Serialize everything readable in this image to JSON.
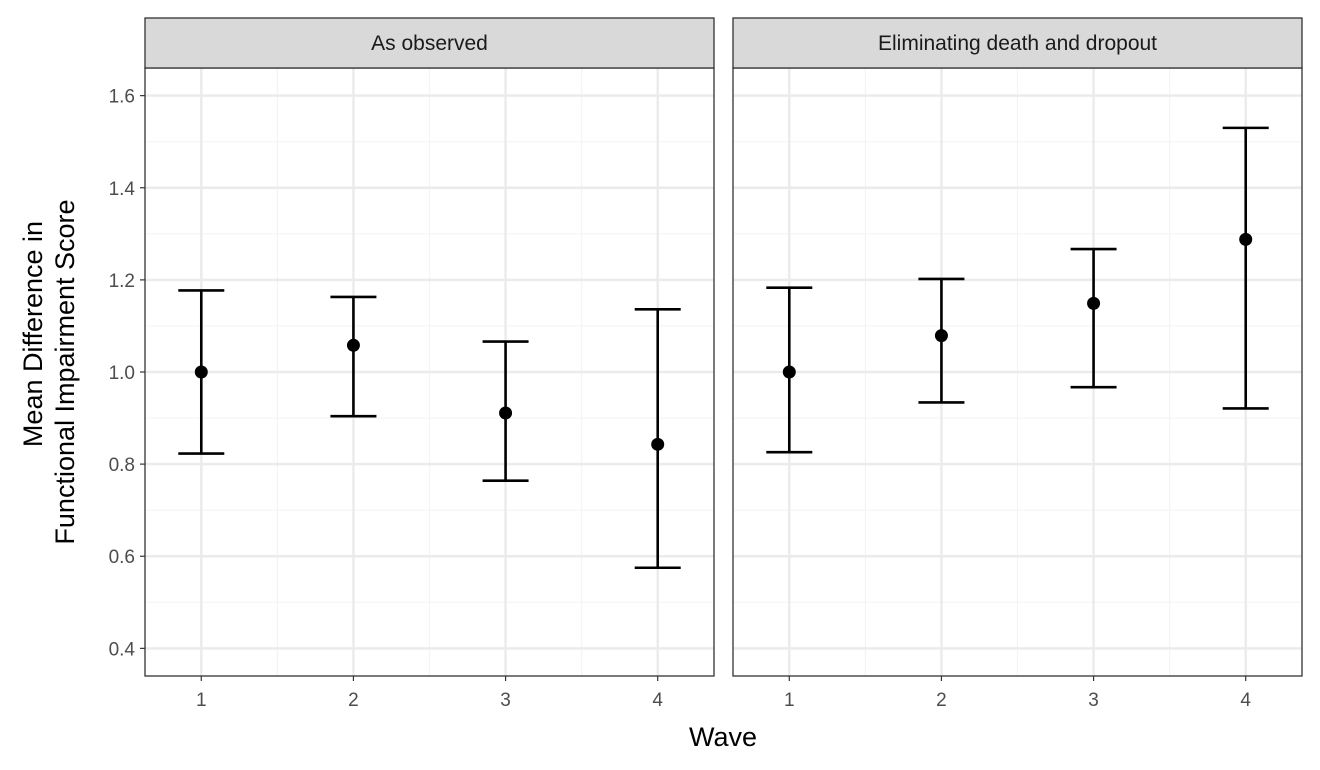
{
  "chart_data": {
    "type": "scatter",
    "subtype": "point-errorbar-facets",
    "xlabel": "Wave",
    "ylabel_lines": [
      "Mean Difference in",
      "Functional Impairment Score"
    ],
    "ylim": [
      0.34,
      1.66
    ],
    "xlim": [
      0.63,
      4.37
    ],
    "yticks": [
      "0.4",
      "0.6",
      "0.8",
      "1.0",
      "1.2",
      "1.4",
      "1.6"
    ],
    "xticks": [
      "1",
      "2",
      "3",
      "4"
    ],
    "grid": true,
    "legend": "none",
    "colors": {
      "strip_fill": "#d9d9d9",
      "panel_border": "#333333",
      "grid_major": "#ebebeb",
      "grid_minor": "#f4f4f4",
      "marks": "#000000"
    },
    "panels": [
      {
        "title": "As observed",
        "points": [
          {
            "x": 1,
            "y": 1.0,
            "lower": 0.823,
            "upper": 1.177
          },
          {
            "x": 2,
            "y": 1.058,
            "lower": 0.904,
            "upper": 1.163
          },
          {
            "x": 3,
            "y": 0.911,
            "lower": 0.764,
            "upper": 1.066
          },
          {
            "x": 4,
            "y": 0.843,
            "lower": 0.575,
            "upper": 1.136
          }
        ]
      },
      {
        "title": "Eliminating death and dropout",
        "points": [
          {
            "x": 1,
            "y": 1.0,
            "lower": 0.826,
            "upper": 1.183
          },
          {
            "x": 2,
            "y": 1.079,
            "lower": 0.934,
            "upper": 1.202
          },
          {
            "x": 3,
            "y": 1.149,
            "lower": 0.967,
            "upper": 1.267
          },
          {
            "x": 4,
            "y": 1.288,
            "lower": 0.921,
            "upper": 1.53
          }
        ]
      }
    ]
  }
}
